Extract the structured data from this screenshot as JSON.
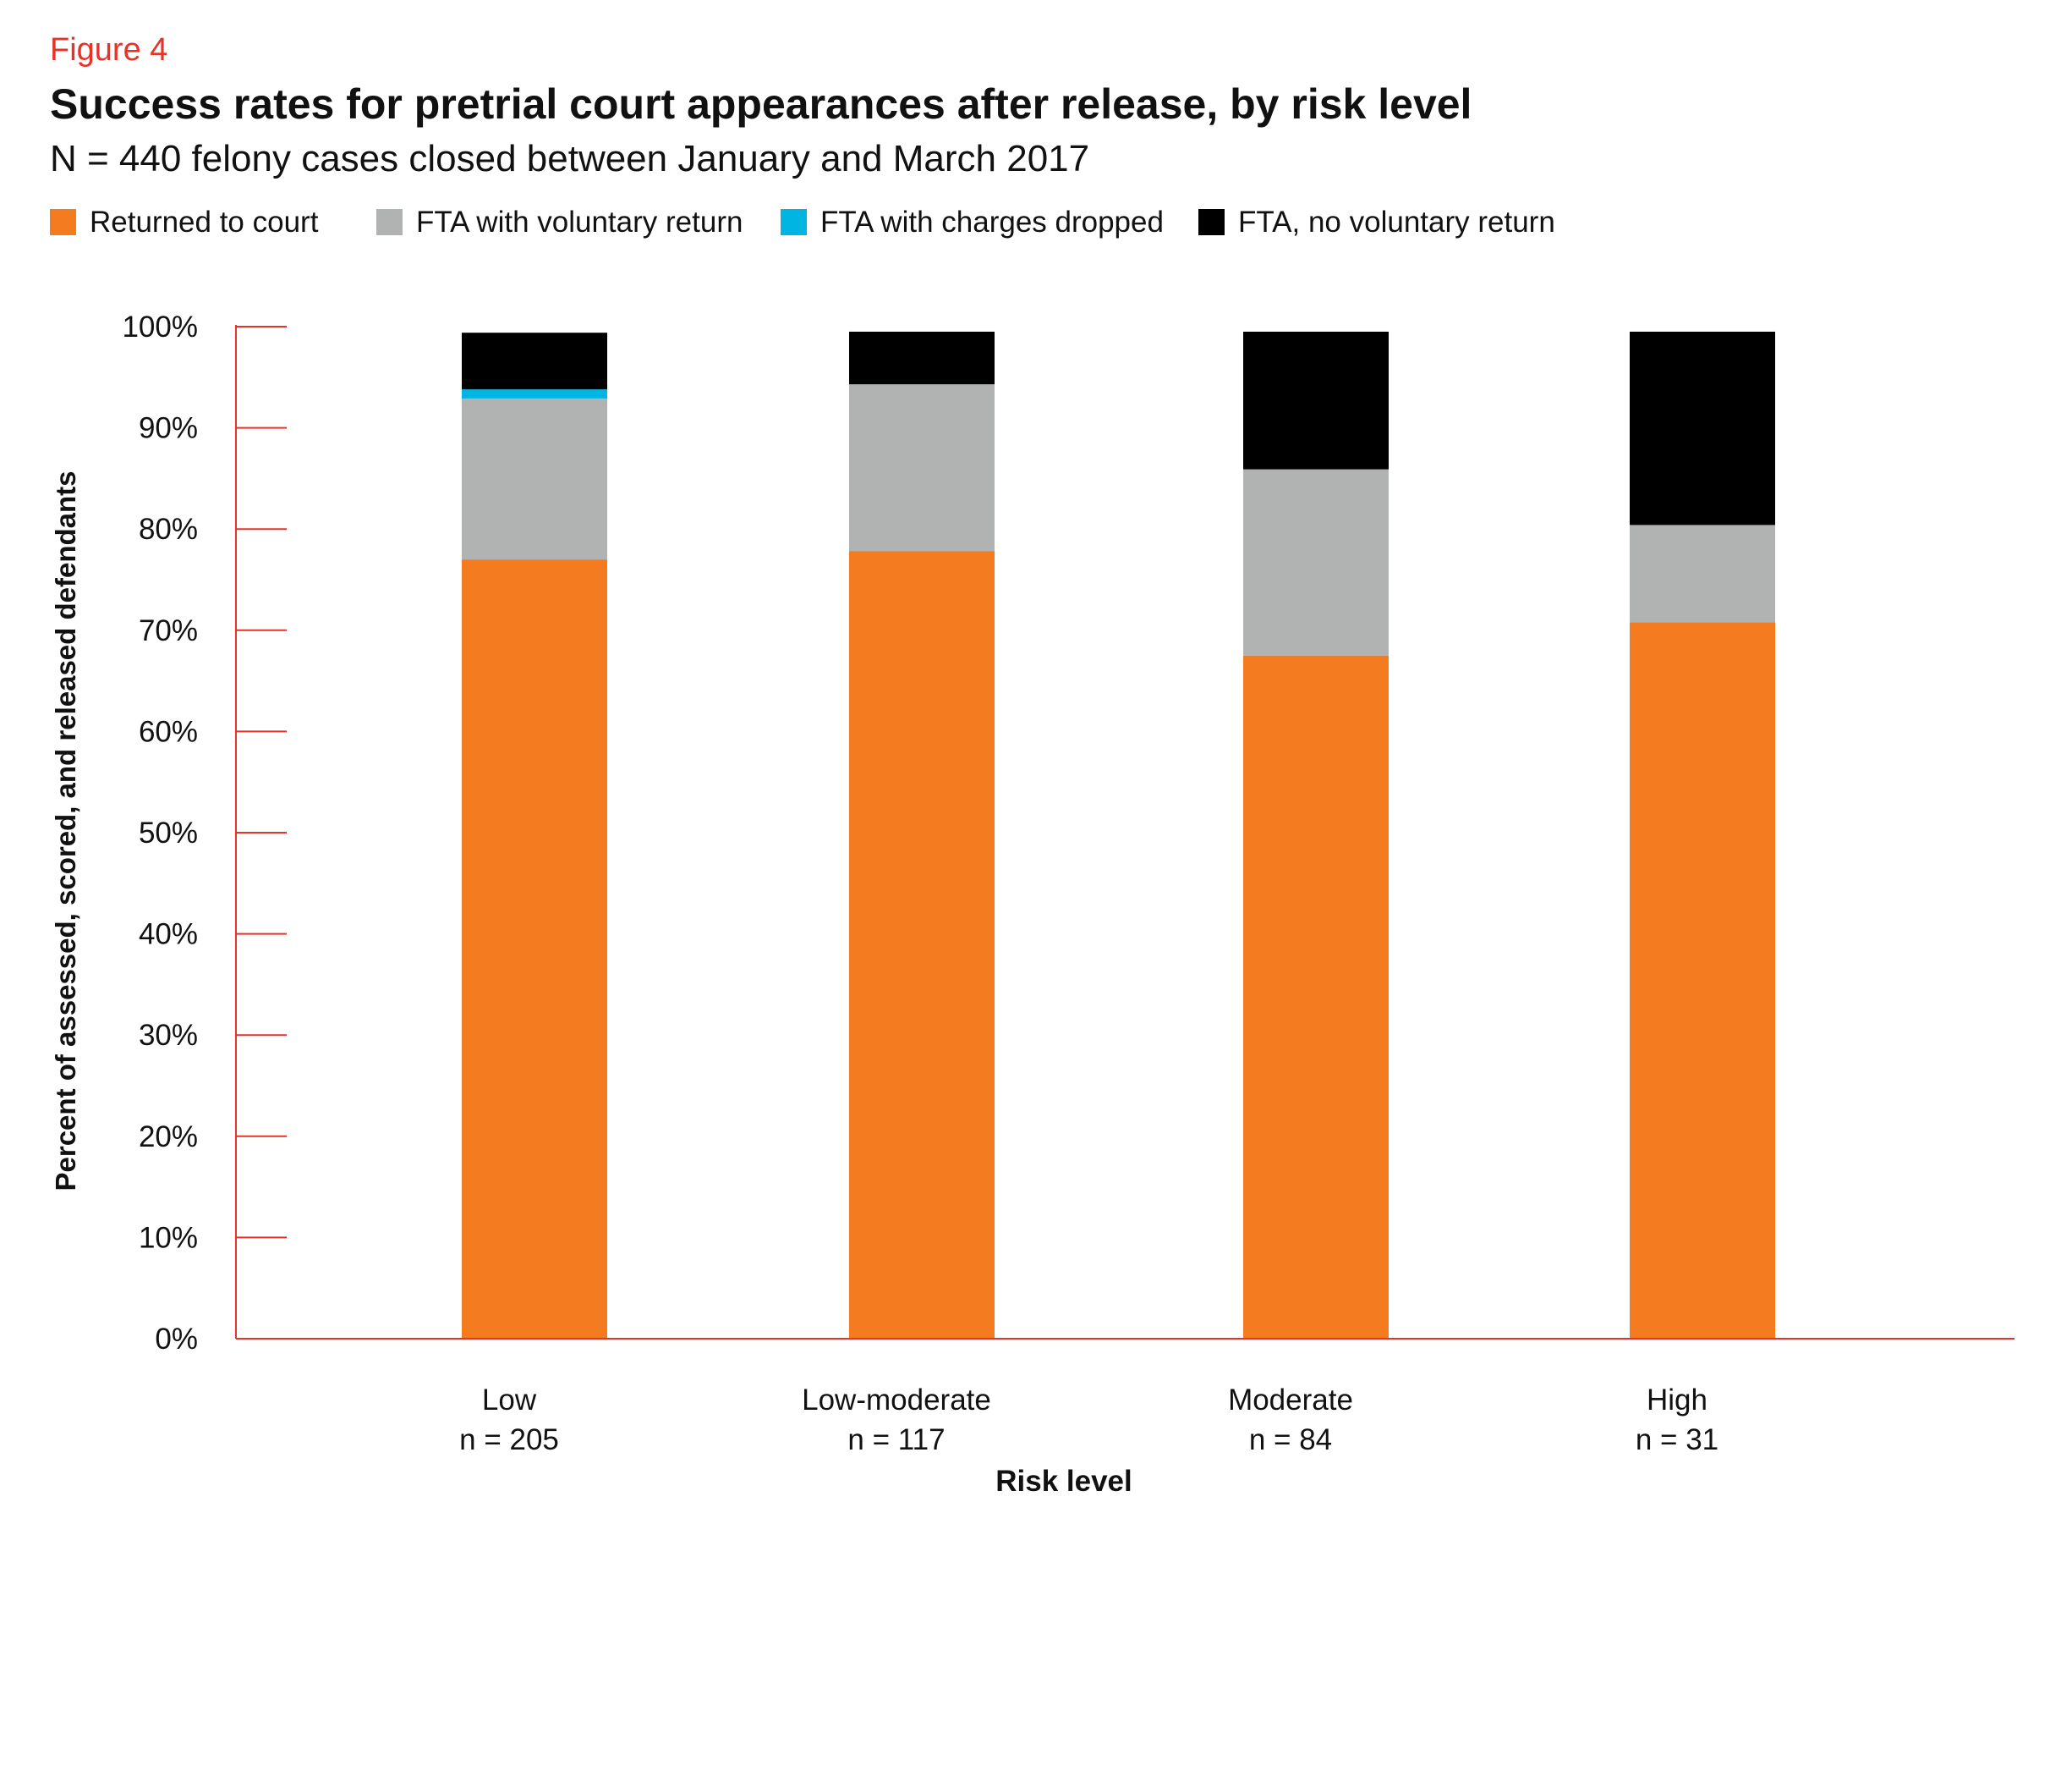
{
  "figure_label": "Figure 4",
  "chart_data": {
    "type": "bar",
    "stacked": true,
    "title": "Success rates for pretrial court appearances after release, by risk level",
    "subtitle": "N = 440 felony cases closed between January and March 2017",
    "categories": [
      "Low",
      "Low-moderate",
      "Moderate",
      "High"
    ],
    "category_counts": [
      "n = 205",
      "n = 117",
      "n = 84",
      "n = 31"
    ],
    "series": [
      {
        "name": "Returned to court",
        "color": "#f47b20",
        "values": [
          77.0,
          77.8,
          67.5,
          70.8
        ]
      },
      {
        "name": "FTA with voluntary return",
        "color": "#b1b3b3",
        "values": [
          15.9,
          16.5,
          18.4,
          9.6
        ]
      },
      {
        "name": "FTA with charges dropped",
        "color": "#00b5e2",
        "values": [
          0.9,
          0.0,
          0.0,
          0.0
        ]
      },
      {
        "name": "FTA, no voluntary return",
        "color": "#000000",
        "values": [
          5.6,
          5.2,
          13.6,
          19.1
        ]
      }
    ],
    "xlabel": "Risk level",
    "ylabel": "Percent of assessed, scored, and released defendants",
    "ylim": [
      0,
      100
    ],
    "yticks": [
      "0%",
      "10%",
      "20%",
      "30%",
      "40%",
      "50%",
      "60%",
      "70%",
      "80%",
      "90%",
      "100%"
    ],
    "axis_color": "#e5332a",
    "grid": false,
    "legend_position": "top-left"
  }
}
